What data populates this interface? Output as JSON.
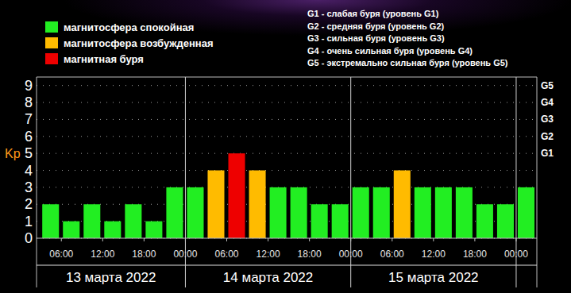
{
  "chart_data": {
    "type": "bar",
    "y_label": "Kp",
    "x": [
      3,
      6,
      9,
      12,
      15,
      18,
      21,
      24,
      27,
      30,
      33,
      36,
      39,
      42,
      45,
      48,
      51,
      54,
      57,
      60,
      63,
      66,
      69,
      72
    ],
    "values": [
      2,
      1,
      2,
      1,
      2,
      1,
      3,
      3,
      4,
      5,
      4,
      3,
      3,
      2,
      2,
      3,
      3,
      4,
      3,
      3,
      3,
      2,
      2,
      3
    ],
    "colors": [
      "#22ee22",
      "#22ee22",
      "#22ee22",
      "#22ee22",
      "#22ee22",
      "#22ee22",
      "#22ee22",
      "#22ee22",
      "#ffbb00",
      "#ee0000",
      "#ffbb00",
      "#22ee22",
      "#22ee22",
      "#22ee22",
      "#22ee22",
      "#22ee22",
      "#22ee22",
      "#ffbb00",
      "#22ee22",
      "#22ee22",
      "#22ee22",
      "#22ee22",
      "#22ee22",
      "#22ee22"
    ],
    "xlim": [
      2.4,
      75
    ],
    "xticks": [
      {
        "value": 6,
        "label": "06:00"
      },
      {
        "value": 12,
        "label": "12:00"
      },
      {
        "value": 18,
        "label": "18:00"
      },
      {
        "value": 24,
        "label": "00:00"
      },
      {
        "value": 30,
        "label": "06:00"
      },
      {
        "value": 36,
        "label": "12:00"
      },
      {
        "value": 42,
        "label": "18:00"
      },
      {
        "value": 48,
        "label": "00:00"
      },
      {
        "value": 54,
        "label": "06:00"
      },
      {
        "value": 60,
        "label": "12:00"
      },
      {
        "value": 66,
        "label": "18:00"
      },
      {
        "value": 72,
        "label": "00:00"
      }
    ],
    "x_groups": [
      {
        "label": "13 марта 2022",
        "start": 0,
        "end": 24
      },
      {
        "label": "14 марта 2022",
        "start": 24,
        "end": 48
      },
      {
        "label": "15 марта 2022",
        "start": 48,
        "end": 72
      }
    ],
    "ylim": [
      0,
      9.5
    ],
    "yticks": [
      0,
      1,
      2,
      3,
      4,
      5,
      6,
      7,
      8,
      9
    ],
    "y2lim": [
      0,
      9.5
    ],
    "y2ticks": [
      {
        "value": 5,
        "label": "G1"
      },
      {
        "value": 6,
        "label": "G2"
      },
      {
        "value": 7,
        "label": "G3"
      },
      {
        "value": 8,
        "label": "G4"
      },
      {
        "value": 9,
        "label": "G5"
      }
    ],
    "grid": true,
    "legend": "top-left",
    "legend_entries": [
      {
        "name": "магнитосфера спокойная",
        "color": "#22ee22"
      },
      {
        "name": "магнитосфера возбужденная",
        "color": "#ffbb00"
      },
      {
        "name": "магнитная буря",
        "color": "#ee0000"
      }
    ],
    "notes": [
      "G1 - слабая буря (уровень G1)",
      "G2 - средняя буря (уровень G2)",
      "G3 - сильная буря (уровень G3)",
      "G4 - очень сильная буря (уровень G4)",
      "G5 - экстремально сильная буря (уровень G5)"
    ]
  }
}
